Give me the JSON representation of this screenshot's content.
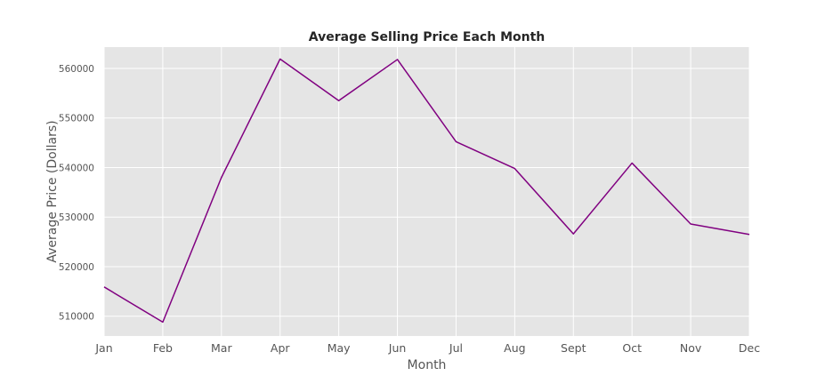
{
  "chart_data": {
    "type": "line",
    "title": "Average Selling Price Each Month",
    "xlabel": "Month",
    "ylabel": "Average Price (Dollars)",
    "categories": [
      "Jan",
      "Feb",
      "Mar",
      "Apr",
      "May",
      "Jun",
      "Jul",
      "Aug",
      "Sept",
      "Oct",
      "Nov",
      "Dec"
    ],
    "series": [
      {
        "values": [
          515900,
          508800,
          538000,
          561900,
          553500,
          561800,
          545200,
          539800,
          526600,
          540900,
          528600,
          526500
        ],
        "color": "#800080"
      }
    ],
    "ylim": [
      506000,
      564300
    ],
    "yticks": [
      510000,
      520000,
      530000,
      540000,
      550000,
      560000
    ],
    "ytick_labels": [
      "510000",
      "520000",
      "530000",
      "540000",
      "550000",
      "560000"
    ],
    "grid": true,
    "background": "#e5e5e5",
    "grid_color": "#ffffff"
  }
}
